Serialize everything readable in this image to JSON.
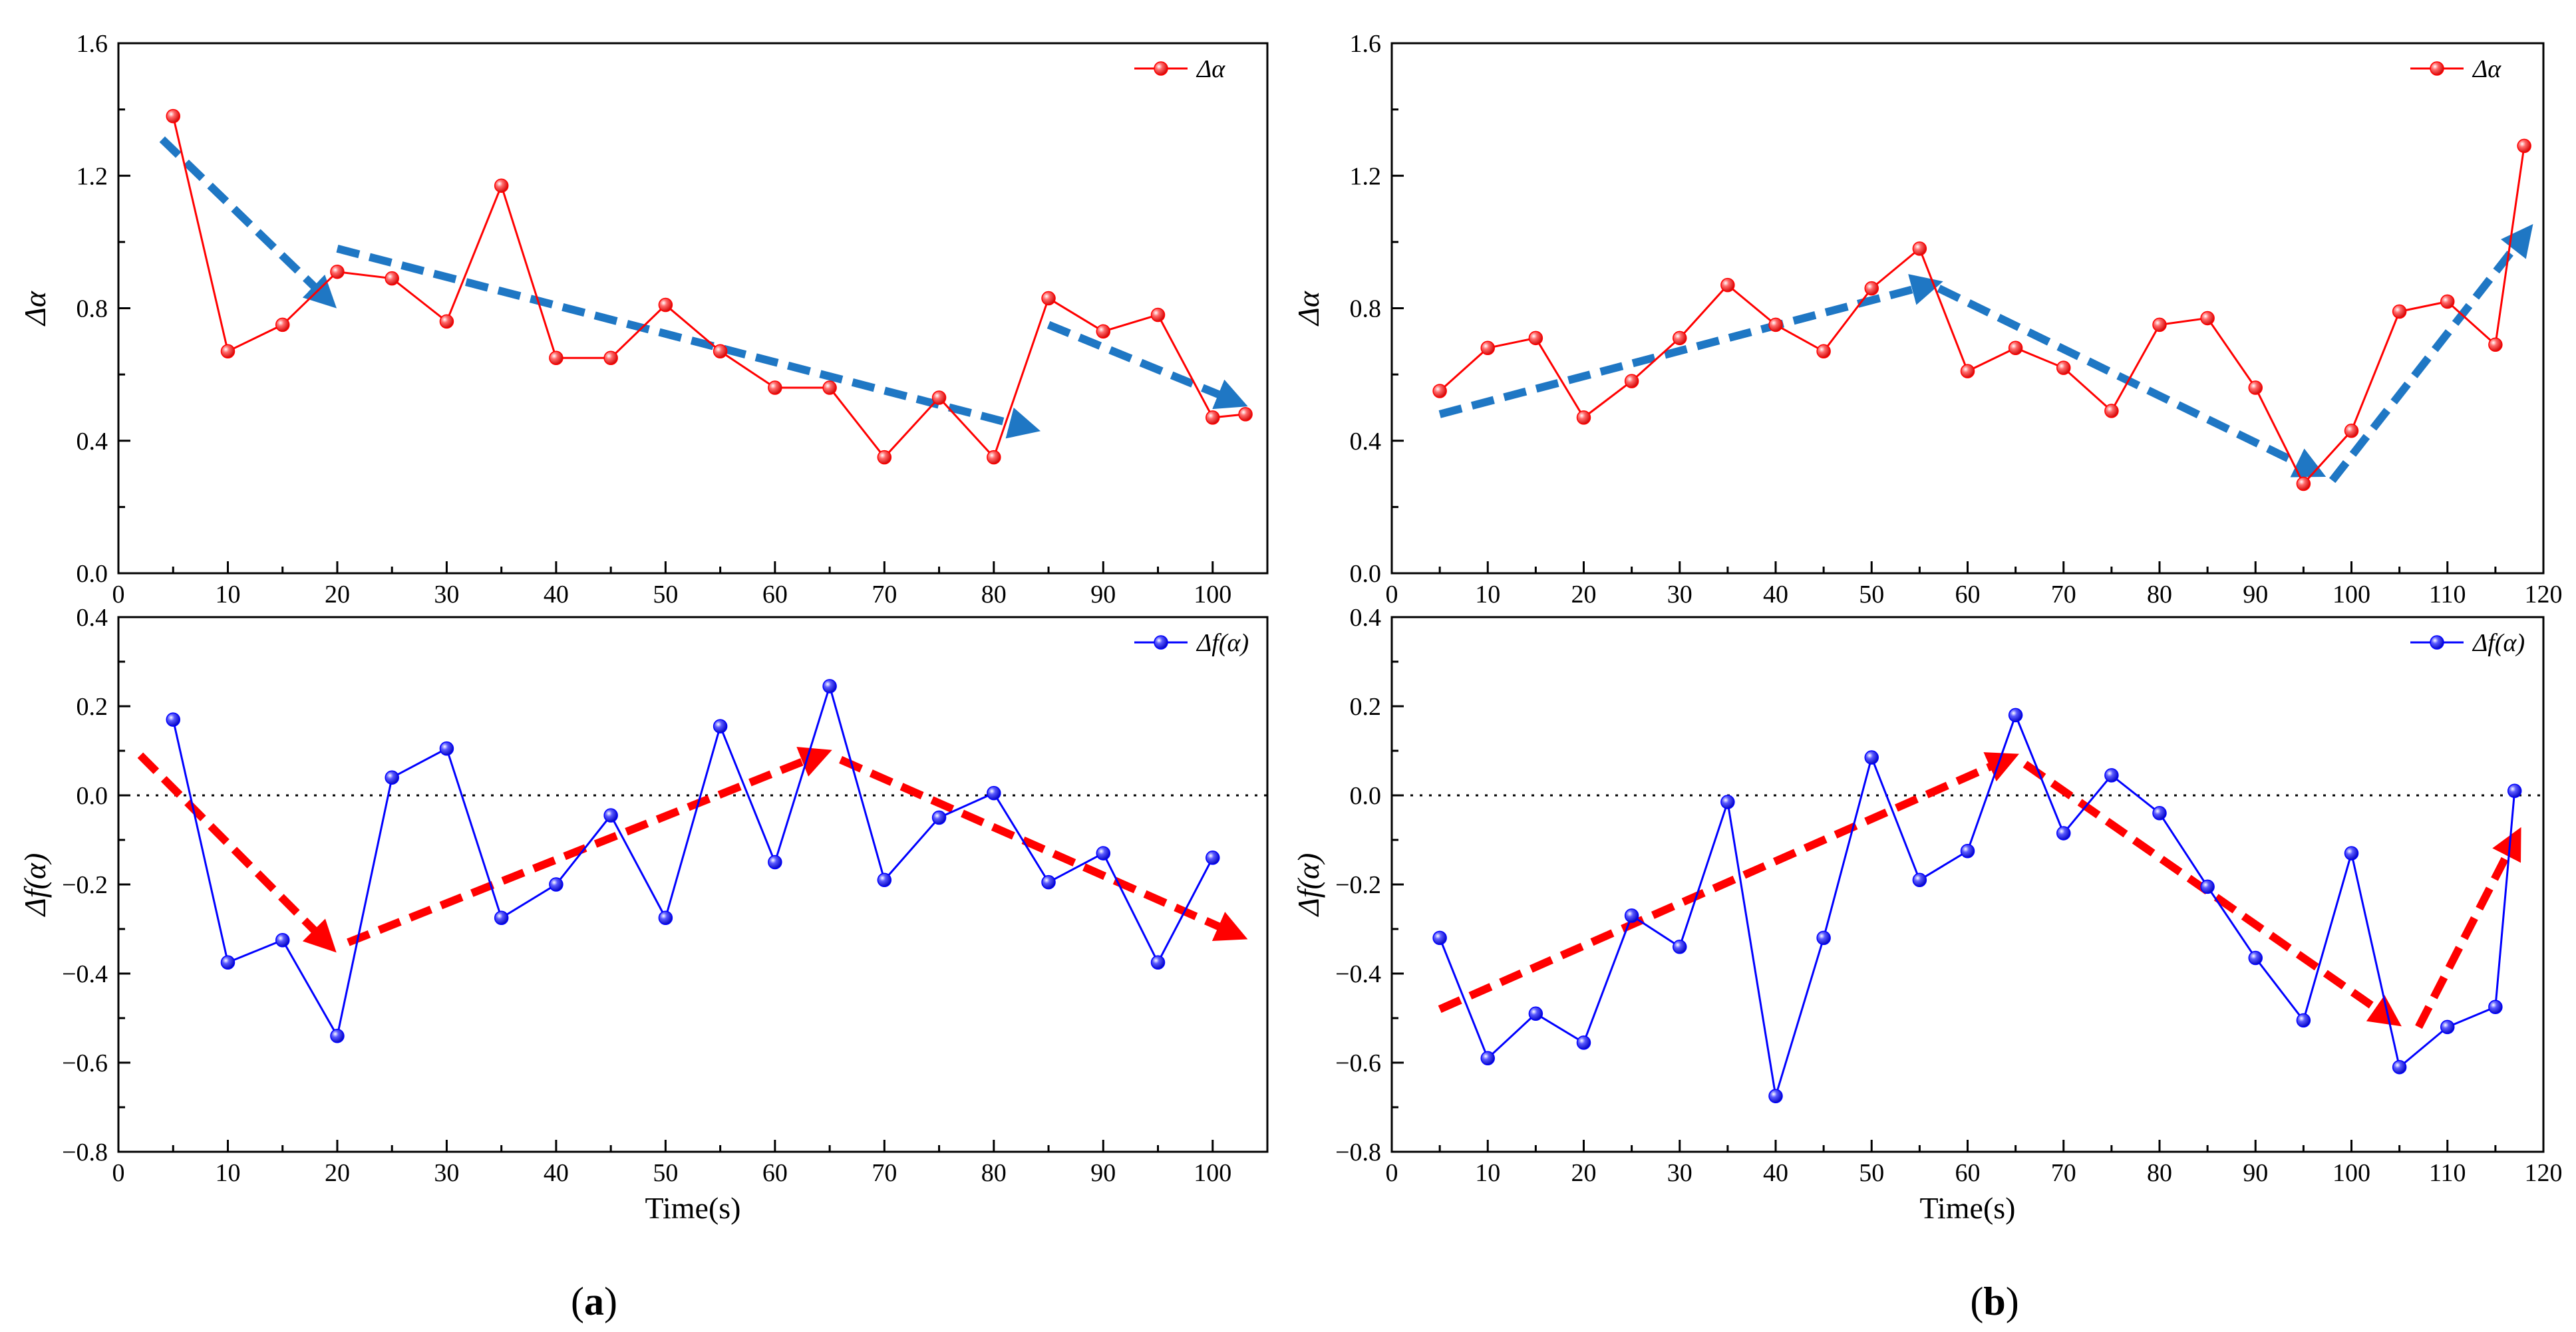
{
  "panels": [
    {
      "label": "b",
      "label_wrapped": "(a)",
      "label_letter": "a"
    },
    {
      "label_letter": "b"
    }
  ],
  "chart_data": [
    {
      "panel": "a",
      "position": "top",
      "type": "line",
      "xlim": [
        0,
        105
      ],
      "xticks": [
        0,
        10,
        20,
        30,
        40,
        50,
        60,
        70,
        80,
        90,
        100
      ],
      "ylim": [
        0.0,
        1.6
      ],
      "yticks": [
        "0.0",
        "0.4",
        "0.8",
        "1.2",
        "1.6"
      ],
      "ytick_values": [
        0.0,
        0.4,
        0.8,
        1.2,
        1.6
      ],
      "ylabel": "Δα",
      "xlabel": "",
      "legend_position": "top-right",
      "series": [
        {
          "name": "Δα",
          "color": "#ff0000",
          "x": [
            5,
            10,
            15,
            20,
            25,
            30,
            35,
            40,
            45,
            50,
            55,
            60,
            65,
            70,
            75,
            80,
            85,
            90,
            95,
            100,
            103
          ],
          "y": [
            1.38,
            0.67,
            0.75,
            0.91,
            0.89,
            0.76,
            1.17,
            0.65,
            0.65,
            0.81,
            0.67,
            0.56,
            0.56,
            0.35,
            0.53,
            0.35,
            0.83,
            0.73,
            0.78,
            0.47,
            0.48
          ]
        }
      ],
      "trend_arrows": {
        "color": "#1f77c4",
        "segments": [
          [
            [
              4,
              1.31
            ],
            [
              19,
              0.83
            ]
          ],
          [
            [
              20,
              0.98
            ],
            [
              83,
              0.44
            ]
          ],
          [
            [
              85,
              0.75
            ],
            [
              102,
              0.52
            ]
          ]
        ]
      }
    },
    {
      "panel": "a",
      "position": "bottom",
      "type": "line",
      "xlim": [
        0,
        105
      ],
      "xticks": [
        0,
        10,
        20,
        30,
        40,
        50,
        60,
        70,
        80,
        90,
        100
      ],
      "ylim": [
        -0.8,
        0.4
      ],
      "yticks": [
        "−0.8",
        "−0.6",
        "−0.4",
        "−0.2",
        "0.0",
        "0.2",
        "0.4"
      ],
      "ytick_values": [
        -0.8,
        -0.6,
        -0.4,
        -0.2,
        0.0,
        0.2,
        0.4
      ],
      "ylabel": "Δf(α)",
      "xlabel": "Time(s)",
      "legend_position": "top-right",
      "zero_line": true,
      "series": [
        {
          "name": "Δf(α)",
          "color": "#0000ff",
          "x": [
            5,
            10,
            15,
            20,
            25,
            30,
            35,
            40,
            45,
            50,
            55,
            60,
            65,
            70,
            75,
            80,
            85,
            90,
            95,
            100
          ],
          "y": [
            0.17,
            -0.375,
            -0.325,
            -0.54,
            0.04,
            0.105,
            -0.275,
            -0.2,
            -0.045,
            -0.275,
            0.155,
            -0.15,
            0.245,
            -0.19,
            -0.05,
            0.005,
            -0.195,
            -0.13,
            -0.375,
            -0.14
          ]
        }
      ],
      "trend_arrows": {
        "color": "#ff0000",
        "segments": [
          [
            [
              2,
              0.09
            ],
            [
              19,
              -0.33
            ]
          ],
          [
            [
              21,
              -0.33
            ],
            [
              64,
              0.09
            ]
          ],
          [
            [
              66,
              0.08
            ],
            [
              102,
              -0.31
            ]
          ]
        ]
      }
    },
    {
      "panel": "b",
      "position": "top",
      "type": "line",
      "xlim": [
        0,
        120
      ],
      "xticks": [
        0,
        10,
        20,
        30,
        40,
        50,
        60,
        70,
        80,
        90,
        100,
        110,
        120
      ],
      "ylim": [
        0.0,
        1.6
      ],
      "yticks": [
        "0.0",
        "0.4",
        "0.8",
        "1.2",
        "1.6"
      ],
      "ytick_values": [
        0.0,
        0.4,
        0.8,
        1.2,
        1.6
      ],
      "ylabel": "Δα",
      "xlabel": "",
      "legend_position": "top-right",
      "series": [
        {
          "name": "Δα",
          "color": "#ff0000",
          "x": [
            5,
            10,
            15,
            20,
            25,
            30,
            35,
            40,
            45,
            50,
            55,
            60,
            65,
            70,
            75,
            80,
            85,
            90,
            95,
            100,
            105,
            110,
            115,
            118
          ],
          "y": [
            0.55,
            0.68,
            0.71,
            0.47,
            0.58,
            0.71,
            0.87,
            0.75,
            0.67,
            0.86,
            0.98,
            0.61,
            0.68,
            0.62,
            0.49,
            0.75,
            0.77,
            0.56,
            0.27,
            0.43,
            0.79,
            0.82,
            0.69,
            1.29
          ]
        }
      ],
      "trend_arrows": {
        "color": "#1f77c4",
        "segments": [
          [
            [
              5,
              0.48
            ],
            [
              56,
              0.87
            ]
          ],
          [
            [
              57,
              0.86
            ],
            [
              96,
              0.31
            ]
          ],
          [
            [
              98,
              0.28
            ],
            [
              118,
              1.02
            ]
          ]
        ]
      }
    },
    {
      "panel": "b",
      "position": "bottom",
      "type": "line",
      "xlim": [
        0,
        120
      ],
      "xticks": [
        0,
        10,
        20,
        30,
        40,
        50,
        60,
        70,
        80,
        90,
        100,
        110,
        120
      ],
      "ylim": [
        -0.8,
        0.4
      ],
      "yticks": [
        "−0.8",
        "−0.6",
        "−0.4",
        "−0.2",
        "0.0",
        "0.2",
        "0.4"
      ],
      "ytick_values": [
        -0.8,
        -0.6,
        -0.4,
        -0.2,
        0.0,
        0.2,
        0.4
      ],
      "ylabel": "Δf(α)",
      "xlabel": "Time(s)",
      "legend_position": "top-right",
      "zero_line": true,
      "series": [
        {
          "name": "Δf(α)",
          "color": "#0000ff",
          "x": [
            5,
            10,
            15,
            20,
            25,
            30,
            35,
            40,
            45,
            50,
            55,
            60,
            65,
            70,
            75,
            80,
            85,
            90,
            95,
            100,
            105,
            110,
            115,
            117
          ],
          "y": [
            -0.32,
            -0.59,
            -0.49,
            -0.555,
            -0.27,
            -0.34,
            -0.015,
            -0.675,
            -0.32,
            0.085,
            -0.19,
            -0.125,
            0.18,
            -0.085,
            0.045,
            -0.04,
            -0.205,
            -0.365,
            -0.505,
            -0.13,
            -0.61,
            -0.52,
            -0.475,
            0.01
          ]
        }
      ],
      "trend_arrows": {
        "color": "#ff0000",
        "segments": [
          [
            [
              5,
              -0.48
            ],
            [
              64,
              0.08
            ]
          ],
          [
            [
              66,
              0.07
            ],
            [
              104,
              -0.5
            ]
          ],
          [
            [
              107,
              -0.52
            ],
            [
              117,
              -0.1
            ]
          ]
        ]
      }
    }
  ]
}
